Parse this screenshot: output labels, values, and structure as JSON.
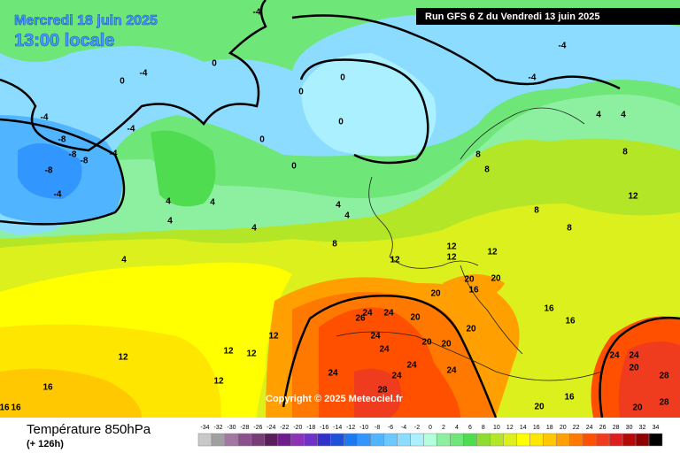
{
  "header": {
    "date": "Mercredi 18 juin 2025",
    "time": "13:00 locale",
    "run": "Run GFS 6 Z du Vendredi 13 juin 2025"
  },
  "copyright": "Copyright © 2025 Meteociel.fr",
  "footer": {
    "title": "Température 850hPa",
    "lead": "(+ 126h)"
  },
  "legend": {
    "values": [
      -34,
      -32,
      -30,
      -28,
      -26,
      -24,
      -22,
      -20,
      -18,
      -16,
      -14,
      -12,
      -10,
      -8,
      -6,
      -4,
      -2,
      0,
      2,
      4,
      6,
      8,
      10,
      12,
      14,
      16,
      18,
      20,
      22,
      24,
      26,
      28,
      30,
      32,
      34
    ],
    "colors": [
      "#c8c8c8",
      "#a0a0a0",
      "#a078a0",
      "#8c508c",
      "#783c78",
      "#5a1e5a",
      "#6e1e8c",
      "#8c32b4",
      "#6e32c8",
      "#3232c8",
      "#1e50dc",
      "#1e78f0",
      "#3296ff",
      "#50b4ff",
      "#6ec8ff",
      "#8cdcff",
      "#aaf0ff",
      "#b4ffdc",
      "#8cf0a0",
      "#6ee678",
      "#50dc50",
      "#8cdc32",
      "#b4e628",
      "#dcf01e",
      "#ffff00",
      "#ffe600",
      "#ffc800",
      "#ffa000",
      "#ff7800",
      "#ff5000",
      "#f03c1e",
      "#dc1e1e",
      "#b40a0a",
      "#8c0000",
      "#000000"
    ]
  },
  "contour_labels": [
    -4,
    0,
    -4,
    0,
    0,
    0,
    0,
    0,
    0,
    -4,
    -8,
    -8,
    -8,
    -4,
    -8,
    -4,
    -4,
    -4,
    -4,
    4,
    4,
    8,
    8,
    8,
    12,
    8,
    8,
    4,
    4,
    4,
    4,
    4,
    4,
    8,
    4,
    12,
    12,
    12,
    12,
    20,
    20,
    20,
    16,
    24,
    24,
    26,
    20,
    16,
    16,
    20,
    24,
    24,
    20,
    20,
    24,
    24,
    24,
    24,
    28,
    12,
    12,
    12,
    12,
    12,
    16,
    16,
    16,
    24,
    24,
    20,
    28,
    28,
    20,
    20,
    16
  ]
}
